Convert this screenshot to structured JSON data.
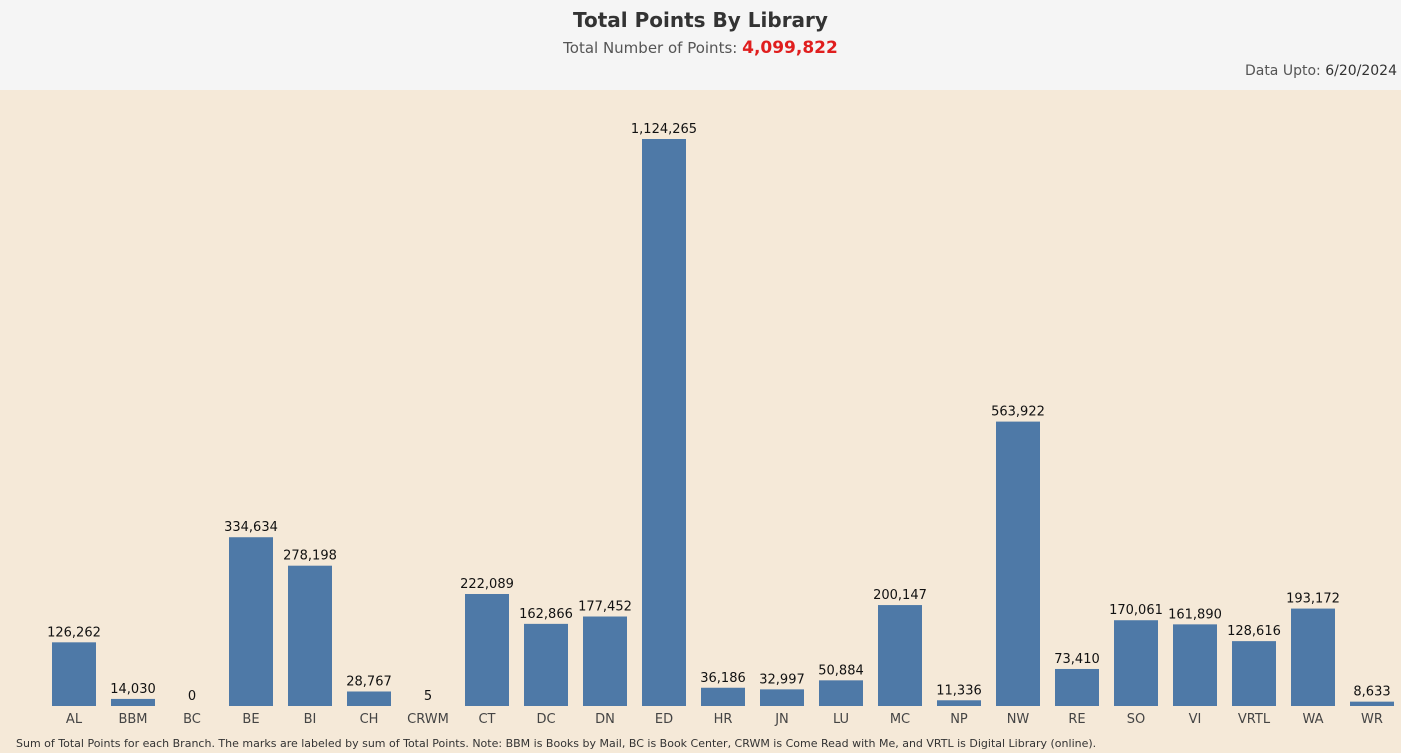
{
  "header": {
    "title": "Total Points By Library",
    "subtitle_label": "Total Number of Points:",
    "subtitle_value": "4,099,822",
    "data_upto_label": "Data Upto:",
    "data_upto_value": "6/20/2024"
  },
  "footnote": "Sum of Total Points for each Branch.  The marks are labeled by sum of Total Points. Note: BBM is Books by Mail, BC is Book Center, CRWM is Come Read with Me, and VRTL is Digital Library (online).",
  "colors": {
    "bar": "#4e79a7",
    "accent_total": "#e01e1e",
    "chart_background": "#f5e9d8"
  },
  "chart_data": {
    "type": "bar",
    "title": "Total Points By Library",
    "xlabel": "",
    "ylabel": "",
    "ylim": [
      0,
      1124265
    ],
    "grid": false,
    "categories": [
      "AL",
      "BBM",
      "BC",
      "BE",
      "BI",
      "CH",
      "CRWM",
      "CT",
      "DC",
      "DN",
      "ED",
      "HR",
      "JN",
      "LU",
      "MC",
      "NP",
      "NW",
      "RE",
      "SO",
      "VI",
      "VRTL",
      "WA",
      "WR"
    ],
    "values": [
      126262,
      14030,
      0,
      334634,
      278198,
      28767,
      5,
      222089,
      162866,
      177452,
      1124265,
      36186,
      32997,
      50884,
      200147,
      11336,
      563922,
      73410,
      170061,
      161890,
      128616,
      193172,
      8633
    ],
    "value_labels": [
      "126,262",
      "14,030",
      "0",
      "334,634",
      "278,198",
      "28,767",
      "5",
      "222,089",
      "162,866",
      "177,452",
      "1,124,265",
      "36,186",
      "32,997",
      "50,884",
      "200,147",
      "11,336",
      "563,922",
      "73,410",
      "170,061",
      "161,890",
      "128,616",
      "193,172",
      "8,633"
    ]
  }
}
